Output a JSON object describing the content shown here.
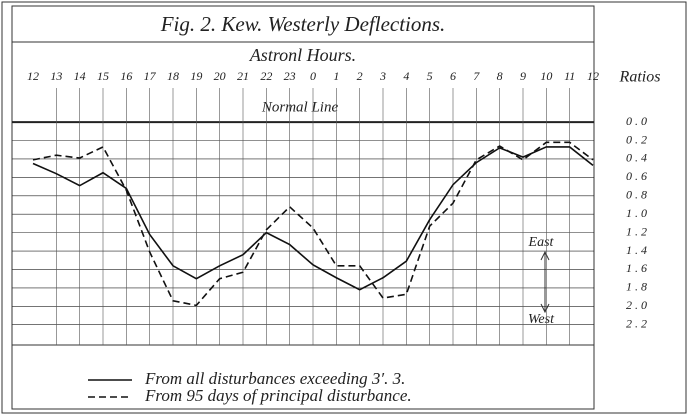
{
  "chart_data": {
    "type": "line",
    "title": "Fig. 2. Kew. Westerly Deflections.",
    "x_label": "Astronl Hours.",
    "y_label": "Ratios",
    "annotations": [
      "Normal Line",
      "East",
      "West"
    ],
    "categories": [
      "12",
      "13",
      "14",
      "15",
      "16",
      "17",
      "18",
      "19",
      "20",
      "21",
      "22",
      "23",
      "0",
      "1",
      "2",
      "3",
      "4",
      "5",
      "6",
      "7",
      "8",
      "9",
      "10",
      "11",
      "12"
    ],
    "series": [
      {
        "name": "From all disturbances exceeding 3′. 3.",
        "color": "#111",
        "dash": "solid",
        "values": [
          0.45,
          0.56,
          0.69,
          0.55,
          0.72,
          1.22,
          1.56,
          1.7,
          1.56,
          1.44,
          1.2,
          1.33,
          1.55,
          1.69,
          1.82,
          1.69,
          1.51,
          1.06,
          0.68,
          0.44,
          0.28,
          0.38,
          0.27,
          0.27,
          0.47
        ]
      },
      {
        "name": "From 95 days of principal disturbance.",
        "color": "#111",
        "dash": "dashed",
        "values": [
          0.41,
          0.36,
          0.39,
          0.27,
          0.74,
          1.41,
          1.94,
          1.99,
          1.7,
          1.63,
          1.17,
          0.92,
          1.15,
          1.56,
          1.56,
          1.91,
          1.87,
          1.13,
          0.88,
          0.41,
          0.26,
          0.41,
          0.22,
          0.22,
          0.41
        ]
      }
    ],
    "ylim": [
      -0.37,
      2.42
    ],
    "y_inverted": true,
    "yticks": [
      {
        "value": 0,
        "label": "0.0"
      },
      0.2,
      0.4,
      0.6,
      0.8,
      {
        "value": 1,
        "label": "1.0"
      },
      1.2,
      1.4,
      1.6,
      1.8,
      {
        "value": 2,
        "label": "2.0"
      },
      2.2
    ],
    "grid": true
  }
}
